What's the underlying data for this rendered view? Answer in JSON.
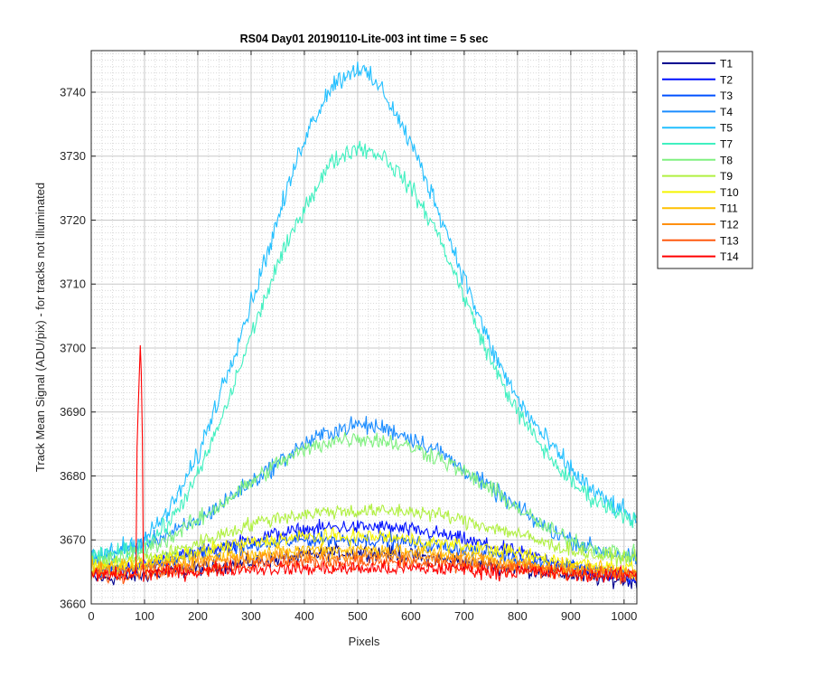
{
  "chart_data": {
    "type": "line",
    "title": "RS04 Day01 20190110-Lite-003 int time = 5 sec",
    "xlabel": "Pixels",
    "ylabel": "Track Mean Signal (ADU/pix) - for tracks not illuminated",
    "xlim": [
      0,
      1024
    ],
    "ylim": [
      3660,
      3746.5
    ],
    "xticks": [
      0,
      100,
      200,
      300,
      400,
      500,
      600,
      700,
      800,
      900,
      1000
    ],
    "yticks": [
      3660,
      3670,
      3680,
      3690,
      3700,
      3710,
      3720,
      3730,
      3740
    ],
    "grid": "major and minor",
    "legend_position": "outside-right-top",
    "x": [
      0,
      50,
      100,
      150,
      200,
      250,
      300,
      350,
      400,
      450,
      500,
      550,
      600,
      650,
      700,
      750,
      800,
      850,
      900,
      950,
      1024
    ],
    "series": [
      {
        "name": "T1",
        "color": "#00008f",
        "values": [
          3664,
          3664,
          3664.5,
          3665,
          3665.5,
          3666,
          3666.5,
          3667,
          3667.5,
          3668,
          3668,
          3668,
          3667.5,
          3667,
          3666.5,
          3666,
          3665.5,
          3665,
          3664.5,
          3664,
          3663.5
        ]
      },
      {
        "name": "T2",
        "color": "#0010ff",
        "values": [
          3665,
          3665.5,
          3666,
          3667,
          3668,
          3669,
          3670,
          3671,
          3671.5,
          3672,
          3672,
          3672,
          3671.5,
          3671,
          3670,
          3669,
          3668,
          3667,
          3666,
          3665,
          3664
        ]
      },
      {
        "name": "T3",
        "color": "#0050ff",
        "values": [
          3665,
          3665.5,
          3666,
          3667,
          3668,
          3668.5,
          3669,
          3669.5,
          3670,
          3670,
          3670,
          3670,
          3669.5,
          3669,
          3668.5,
          3668,
          3667,
          3666.5,
          3666,
          3665,
          3664.5
        ]
      },
      {
        "name": "T4",
        "color": "#1a8cff",
        "values": [
          3667,
          3668,
          3669.5,
          3671,
          3673,
          3676,
          3679,
          3682,
          3685,
          3687,
          3688,
          3687.5,
          3686,
          3684,
          3681,
          3678,
          3675,
          3672,
          3670,
          3668.5,
          3667
        ]
      },
      {
        "name": "T5",
        "color": "#22bfff",
        "values": [
          3667,
          3668.5,
          3670,
          3675,
          3683,
          3695,
          3707,
          3720,
          3733,
          3741,
          3744,
          3740,
          3732,
          3722,
          3711,
          3700,
          3692,
          3686,
          3681,
          3677,
          3673
        ]
      },
      {
        "name": "T7",
        "color": "#40f0c0",
        "values": [
          3667,
          3668,
          3669,
          3673,
          3680,
          3690,
          3702,
          3713,
          3722,
          3729,
          3731.5,
          3730,
          3725,
          3718,
          3708,
          3698,
          3690,
          3684,
          3679,
          3676,
          3673
        ]
      },
      {
        "name": "T8",
        "color": "#80f080",
        "values": [
          3666.5,
          3667,
          3668.5,
          3670.5,
          3673,
          3676,
          3679,
          3682,
          3684,
          3685.5,
          3686,
          3685.5,
          3684.5,
          3683,
          3680.5,
          3678,
          3675,
          3672,
          3670,
          3668.5,
          3667.5
        ]
      },
      {
        "name": "T9",
        "color": "#b0f040",
        "values": [
          3666,
          3666.5,
          3667,
          3668,
          3669.5,
          3671,
          3672.5,
          3673.5,
          3674,
          3674.5,
          3674.5,
          3674.5,
          3674.5,
          3674,
          3673,
          3672,
          3671,
          3669.5,
          3668.5,
          3667.5,
          3667
        ]
      },
      {
        "name": "T10",
        "color": "#f5f500",
        "values": [
          3665.5,
          3666,
          3666.5,
          3667,
          3668,
          3669,
          3669.5,
          3670,
          3670.5,
          3670.5,
          3670.5,
          3670.5,
          3670,
          3669.5,
          3669,
          3668.5,
          3668,
          3667,
          3666.5,
          3666,
          3665.5
        ]
      },
      {
        "name": "T11",
        "color": "#ffc000",
        "values": [
          3665.5,
          3665.5,
          3666,
          3666.5,
          3667,
          3667.5,
          3668,
          3668,
          3668.5,
          3668.5,
          3668.5,
          3668.5,
          3668,
          3668,
          3667.5,
          3667,
          3666.5,
          3666,
          3665.5,
          3665.5,
          3665
        ]
      },
      {
        "name": "T12",
        "color": "#ff9010",
        "values": [
          3665,
          3665,
          3665.5,
          3666,
          3666.5,
          3667,
          3667,
          3667.5,
          3667.5,
          3667.5,
          3667.5,
          3667.5,
          3667.5,
          3667,
          3667,
          3666.5,
          3666,
          3665.5,
          3665.5,
          3665,
          3664.5
        ]
      },
      {
        "name": "T13",
        "color": "#ff5a10",
        "values": [
          3664.5,
          3664.5,
          3665,
          3665,
          3665.5,
          3666,
          3666,
          3666.5,
          3666.5,
          3666.5,
          3666.5,
          3666.5,
          3666.5,
          3666,
          3666,
          3665.5,
          3665.5,
          3665,
          3665,
          3664.5,
          3664.5
        ]
      },
      {
        "name": "T14",
        "color": "#ff0000",
        "values": [
          3664.5,
          3664.5,
          3665,
          3665,
          3665,
          3665.5,
          3665.5,
          3665.5,
          3665.5,
          3665.5,
          3665.5,
          3665.5,
          3665.5,
          3665.5,
          3665.5,
          3665,
          3665,
          3665,
          3664.5,
          3664.5,
          3664.5
        ]
      }
    ],
    "annotations": [
      {
        "series": "T14",
        "feature": "spike",
        "x": [
          85,
          92,
          95,
          98
        ],
        "y": [
          3682,
          3700,
          3696,
          3665
        ]
      }
    ]
  }
}
